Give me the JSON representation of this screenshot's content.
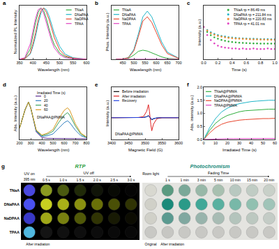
{
  "chart_data": [
    {
      "panel": "a",
      "type": "line",
      "x_label": "Wavelength (nm)",
      "y_label": "Normalized PL Intensity",
      "xlim": [
        350,
        600
      ],
      "xticks": [
        350,
        400,
        450,
        500,
        550,
        600
      ],
      "ylim": [
        0,
        1.05
      ],
      "tick_labels": "x",
      "grid": false,
      "legend": "upper right",
      "x": [
        350,
        370,
        390,
        400,
        410,
        420,
        430,
        440,
        450,
        460,
        470,
        480,
        500,
        520,
        550,
        600
      ],
      "series": [
        {
          "name": "TNaA",
          "color": "#2fae3c",
          "values": [
            0,
            0.02,
            0.2,
            0.45,
            0.72,
            0.92,
            1.0,
            0.95,
            0.8,
            0.6,
            0.42,
            0.28,
            0.12,
            0.05,
            0.01,
            0
          ]
        },
        {
          "name": "DNaPAA",
          "color": "#1fb5c8",
          "values": [
            0,
            0.01,
            0.1,
            0.25,
            0.45,
            0.7,
            0.9,
            1.0,
            0.97,
            0.85,
            0.68,
            0.5,
            0.25,
            0.1,
            0.03,
            0
          ]
        },
        {
          "name": "NaDPAA",
          "color": "#e8452c",
          "values": [
            0,
            0.01,
            0.12,
            0.3,
            0.52,
            0.78,
            0.95,
            1.0,
            0.92,
            0.78,
            0.6,
            0.42,
            0.18,
            0.07,
            0.02,
            0
          ]
        },
        {
          "name": "TPAA",
          "color": "#e040c0",
          "values": [
            0,
            0.03,
            0.3,
            0.55,
            0.8,
            0.97,
            1.0,
            0.9,
            0.72,
            0.52,
            0.35,
            0.22,
            0.09,
            0.03,
            0.01,
            0
          ]
        }
      ]
    },
    {
      "panel": "b",
      "type": "line",
      "x_label": "Wavelength (nm)",
      "y_label": "Phos. Intensity (a.u.)",
      "xlim": [
        400,
        700
      ],
      "xticks": [
        450,
        500,
        550,
        600,
        650,
        700
      ],
      "ylim": [
        0,
        1900
      ],
      "tick_labels": "x",
      "grid": false,
      "legend": "upper left",
      "x": [
        420,
        450,
        475,
        500,
        520,
        540,
        560,
        580,
        600,
        625,
        650,
        700
      ],
      "series": [
        {
          "name": "TNaA",
          "color": "#2fae3c",
          "values": [
            0,
            5,
            30,
            150,
            280,
            320,
            290,
            220,
            150,
            80,
            30,
            5
          ]
        },
        {
          "name": "DNaPAA",
          "color": "#1fb5c8",
          "values": [
            0,
            10,
            60,
            350,
            900,
            1500,
            1700,
            1500,
            1100,
            600,
            250,
            40
          ]
        },
        {
          "name": "NaDPAA",
          "color": "#e8452c",
          "values": [
            0,
            10,
            50,
            300,
            800,
            1350,
            1500,
            1300,
            950,
            500,
            200,
            30
          ]
        },
        {
          "name": "TPAA",
          "color": "#e040c0",
          "values": [
            0,
            0,
            2,
            5,
            10,
            12,
            12,
            10,
            8,
            5,
            2,
            0
          ]
        }
      ]
    },
    {
      "panel": "c",
      "type": "scatter",
      "marker": "circle",
      "x_label": "Time (s)",
      "y_label": "Intensity (a.u.)",
      "xlim": [
        0,
        1.0
      ],
      "xticks": [
        {
          "value": 0,
          "label": "0.0"
        },
        {
          "value": 0.2,
          "label": "0.2"
        },
        {
          "value": 0.4,
          "label": "0.4"
        },
        {
          "value": 0.6,
          "label": "0.6"
        },
        {
          "value": 0.8,
          "label": "0.8"
        },
        {
          "value": 1.0,
          "label": "1.0"
        }
      ],
      "ylim": [
        1,
        100000
      ],
      "log": "y",
      "tick_labels": "x",
      "grid": false,
      "legend": "upper right",
      "x": [
        0,
        0.05,
        0.1,
        0.15,
        0.2,
        0.25,
        0.3,
        0.35,
        0.4,
        0.45,
        0.5,
        0.55,
        0.6,
        0.65,
        0.7,
        0.75,
        0.8,
        0.85,
        0.9,
        0.95,
        1.0
      ],
      "series": [
        {
          "name": "TNaA τp = 86.49 ms",
          "color": "#2fae3c",
          "values": [
            1000,
            350,
            170,
            110,
            80,
            62,
            52,
            45,
            40,
            37,
            35,
            33,
            32,
            31,
            30,
            30,
            29,
            29,
            28,
            28,
            28
          ]
        },
        {
          "name": "DNaPAA τp = 211.84 ms",
          "color": "#1fb5c8",
          "values": [
            1000,
            520,
            320,
            230,
            180,
            150,
            130,
            115,
            105,
            98,
            92,
            88,
            85,
            82,
            80,
            78,
            76,
            75,
            74,
            73,
            72
          ]
        },
        {
          "name": "NaDPAA τp = 220.83 ms",
          "color": "#f08a2c",
          "values": [
            1000,
            470,
            270,
            190,
            150,
            125,
            108,
            97,
            90,
            85,
            80,
            77,
            74,
            72,
            70,
            69,
            68,
            67,
            66,
            65,
            64
          ]
        },
        {
          "name": "TPAA τp = 41.01 ms",
          "color": "#e040c0",
          "values": [
            1000,
            180,
            60,
            30,
            18,
            14,
            12,
            11,
            10,
            10,
            9,
            10,
            9,
            9,
            10,
            9,
            9,
            9,
            10,
            9,
            9
          ]
        }
      ]
    },
    {
      "panel": "d",
      "type": "line",
      "x_label": "Wavelength (nm)",
      "y_label": "Abs. Intensity (a.u.)",
      "annotation": "DNaPAA@PMMA",
      "legend_title": "Irradiated Time (s)",
      "xlim": [
        200,
        800
      ],
      "xticks": [
        200,
        300,
        400,
        500,
        600,
        700,
        800
      ],
      "ylim": [
        0,
        1.4
      ],
      "tick_labels": "x",
      "grid": false,
      "legend": "upper center",
      "x": [
        200,
        250,
        280,
        300,
        350,
        400,
        450,
        500,
        550,
        600,
        630,
        650,
        700,
        750,
        800
      ],
      "series": [
        {
          "name": "0",
          "color": "#5b2c8f",
          "values": [
            0.3,
            0.8,
            1.0,
            0.85,
            0.2,
            0.05,
            0.03,
            0.03,
            0.03,
            0.03,
            0.03,
            0.03,
            0.02,
            0.02,
            0.02
          ]
        },
        {
          "name": "20",
          "color": "#2f7fbf",
          "values": [
            0.3,
            0.8,
            1.0,
            0.85,
            0.22,
            0.08,
            0.1,
            0.15,
            0.3,
            0.45,
            0.5,
            0.45,
            0.25,
            0.1,
            0.05
          ]
        },
        {
          "name": "40",
          "color": "#3aa05a",
          "values": [
            0.3,
            0.8,
            1.0,
            0.85,
            0.24,
            0.1,
            0.14,
            0.22,
            0.45,
            0.65,
            0.72,
            0.65,
            0.36,
            0.14,
            0.06
          ]
        },
        {
          "name": "60",
          "color": "#d99a20",
          "values": [
            0.3,
            0.8,
            1.0,
            0.85,
            0.25,
            0.12,
            0.17,
            0.27,
            0.55,
            0.78,
            0.85,
            0.78,
            0.42,
            0.17,
            0.07
          ]
        }
      ]
    },
    {
      "panel": "e",
      "type": "line",
      "x_label": "Magnetic Field (G)",
      "y_label": "Intensity (a.u.)",
      "annotation": "DNaPAA@PMMA",
      "xlim": [
        3400,
        3600
      ],
      "xticks": [
        3400,
        3450,
        3500,
        3550,
        3600
      ],
      "ylim": [
        -1,
        1.4
      ],
      "tick_labels": "x",
      "grid": false,
      "legend": "upper left",
      "x": [
        3400,
        3450,
        3480,
        3495,
        3505,
        3510,
        3513,
        3517,
        3520,
        3525,
        3535,
        3550,
        3600
      ],
      "series": [
        {
          "name": "Before irradiation",
          "color": "#000000",
          "values": [
            0,
            0,
            0,
            0.01,
            0.05,
            0.1,
            0.05,
            -0.05,
            -0.1,
            -0.05,
            -0.01,
            0,
            0
          ]
        },
        {
          "name": "After irradiation",
          "color": "#e02020",
          "values": [
            0,
            0,
            0.01,
            0.05,
            0.3,
            0.6,
            0.3,
            -0.3,
            -0.6,
            -0.3,
            -0.05,
            0,
            0
          ]
        },
        {
          "name": "Recovery",
          "color": "#2040e0",
          "values": [
            0,
            0,
            0,
            0.01,
            0.04,
            0.08,
            0.04,
            -0.04,
            -0.08,
            -0.04,
            -0.01,
            0,
            0
          ]
        }
      ]
    },
    {
      "panel": "f",
      "type": "line",
      "x_label": "Irradiated Time (s)",
      "y_label": "Abs. intensity (a.u.)",
      "xlim": [
        0,
        60
      ],
      "xticks": [
        0,
        10,
        20,
        30,
        40,
        50,
        60
      ],
      "ylim": [
        0,
        2.0
      ],
      "yticks": [
        {
          "value": 0,
          "label": "0.0"
        },
        {
          "value": 0.5,
          "label": "0.5"
        },
        {
          "value": 1.0,
          "label": "1.0"
        },
        {
          "value": 1.5,
          "label": "1.5"
        },
        {
          "value": 2.0,
          "label": "2.0"
        }
      ],
      "grid": false,
      "legend": "upper left",
      "x": [
        0,
        5,
        10,
        15,
        20,
        25,
        30,
        35,
        40,
        45,
        50,
        55,
        60
      ],
      "series": [
        {
          "name": "TNaA@PMMA",
          "color": "#2fae3c",
          "values": [
            0,
            0.35,
            0.62,
            0.8,
            0.92,
            1.0,
            1.06,
            1.1,
            1.12,
            1.14,
            1.15,
            1.16,
            1.16
          ]
        },
        {
          "name": "DNaPAA@PMMA",
          "color": "#1fb5c8",
          "values": [
            0,
            0.45,
            0.8,
            1.05,
            1.2,
            1.3,
            1.37,
            1.42,
            1.45,
            1.47,
            1.49,
            1.5,
            1.5
          ]
        },
        {
          "name": "NaDPAA@PMMA",
          "color": "#e8452c",
          "values": [
            0,
            0.25,
            0.45,
            0.58,
            0.66,
            0.71,
            0.74,
            0.76,
            0.78,
            0.79,
            0.8,
            0.8,
            0.81
          ]
        },
        {
          "name": "TPAA@PMMA",
          "color": "#e040c0",
          "values": [
            0,
            0.01,
            0.02,
            0.02,
            0.03,
            0.03,
            0.03,
            0.04,
            0.04,
            0.04,
            0.04,
            0.04,
            0.04
          ]
        }
      ]
    }
  ],
  "panel_g": {
    "label": "g",
    "rtp": {
      "title": "RTP",
      "uv_on": "UV on",
      "wavelength": "395 nm",
      "uv_off": "UV off",
      "times": [
        "0.5 s",
        "1.0 s",
        "1.5 s",
        "2.0 s",
        "2.5 s",
        "3.0 s"
      ],
      "footer": "After irradiation",
      "rows": [
        {
          "name": "TNaA",
          "colors": [
            "#4a48e0",
            "#8a9a20",
            "#4a5a10",
            "#202a08",
            "#101408",
            "#080a04",
            "#050505"
          ]
        },
        {
          "name": "DNaPAA",
          "colors": [
            "#4a50f0",
            "#c8d020",
            "#a8b018",
            "#8a9010",
            "#6a7008",
            "#4a5006",
            "#303404"
          ]
        },
        {
          "name": "NaDPAA",
          "colors": [
            "#3838c8",
            "#a0a818",
            "#788010",
            "#505808",
            "#303404",
            "#181a04",
            "#0c0c02"
          ]
        },
        {
          "name": "TPAA",
          "colors": [
            "#50b8e0",
            "#141414",
            "#101010",
            "#0e0e0e",
            "#0c0c0c",
            "#0a0a0a",
            "#080808"
          ]
        }
      ]
    },
    "photochromism": {
      "title": "Photochromism",
      "room_light": "Room light",
      "fading_time": "Fading Time",
      "times": [
        "1 s",
        "1 min",
        "3 min",
        "5 min",
        "10 min",
        "15 min",
        "20 min"
      ],
      "footer_left": "Original",
      "footer_right": "After irradiation",
      "rows": [
        {
          "colors": [
            "#d8d8d0",
            "#5a9a80",
            "#7aa898",
            "#98b8a8",
            "#a8c0b0",
            "#b8c8c0",
            "#c0ccc4",
            "#c8d0c8"
          ]
        },
        {
          "colors": [
            "#d0d0c8",
            "#1a8a7a",
            "#2a9a88",
            "#40a898",
            "#58b0a0",
            "#78b8a8",
            "#90c0b0",
            "#a0c4b8"
          ]
        },
        {
          "colors": [
            "#d0d0c8",
            "#5a9a90",
            "#80a8a0",
            "#98b4ac",
            "#a8bcb4",
            "#b4c4bc",
            "#bcc8c0",
            "#c4ccc6"
          ]
        },
        {
          "colors": [
            "#c8c8c4",
            "#c6c6c2",
            "#c8c8c4",
            "#c8c8c4",
            "#c8c8c4",
            "#c8c8c4",
            "#c8c8c4",
            "#c8c8c4"
          ]
        }
      ]
    }
  }
}
